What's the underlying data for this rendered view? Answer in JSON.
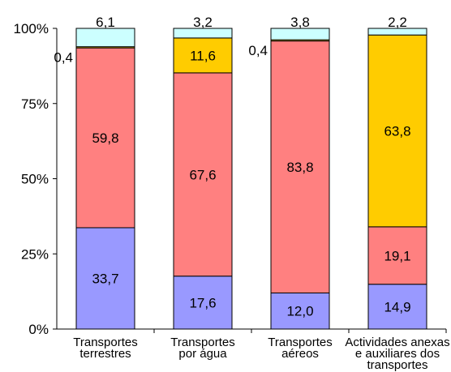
{
  "chart_data": {
    "type": "bar",
    "stacked": true,
    "percent": true,
    "categories": [
      [
        "Transportes",
        "terrestres"
      ],
      [
        "Transportes",
        "por água"
      ],
      [
        "Transportes",
        "aéreos"
      ],
      [
        "Actividades anexas",
        "e auxiliares dos",
        "transportes"
      ]
    ],
    "series": [
      {
        "color": "#9999ff",
        "values": [
          33.7,
          17.6,
          12.0,
          14.9
        ],
        "labels": [
          "33,7",
          "17,6",
          "12,0",
          "14,9"
        ]
      },
      {
        "color": "#ff8080",
        "values": [
          59.8,
          67.6,
          83.8,
          19.1
        ],
        "labels": [
          "59,8",
          "67,6",
          "83,8",
          "19,1"
        ]
      },
      {
        "color": "#ffcc00",
        "values": [
          0.4,
          11.6,
          0.4,
          63.8
        ],
        "labels": [
          "0,4",
          "11,6",
          "0,4",
          "63,8"
        ]
      },
      {
        "color": "#ccffff",
        "values": [
          6.1,
          3.2,
          3.8,
          2.2
        ],
        "labels": [
          "6,1",
          "3,2",
          "3,8",
          "2,2"
        ]
      }
    ],
    "yticks": [
      "0%",
      "25%",
      "50%",
      "75%",
      "100%"
    ],
    "ylim": [
      0,
      100
    ],
    "grid": false,
    "legend": "none"
  }
}
